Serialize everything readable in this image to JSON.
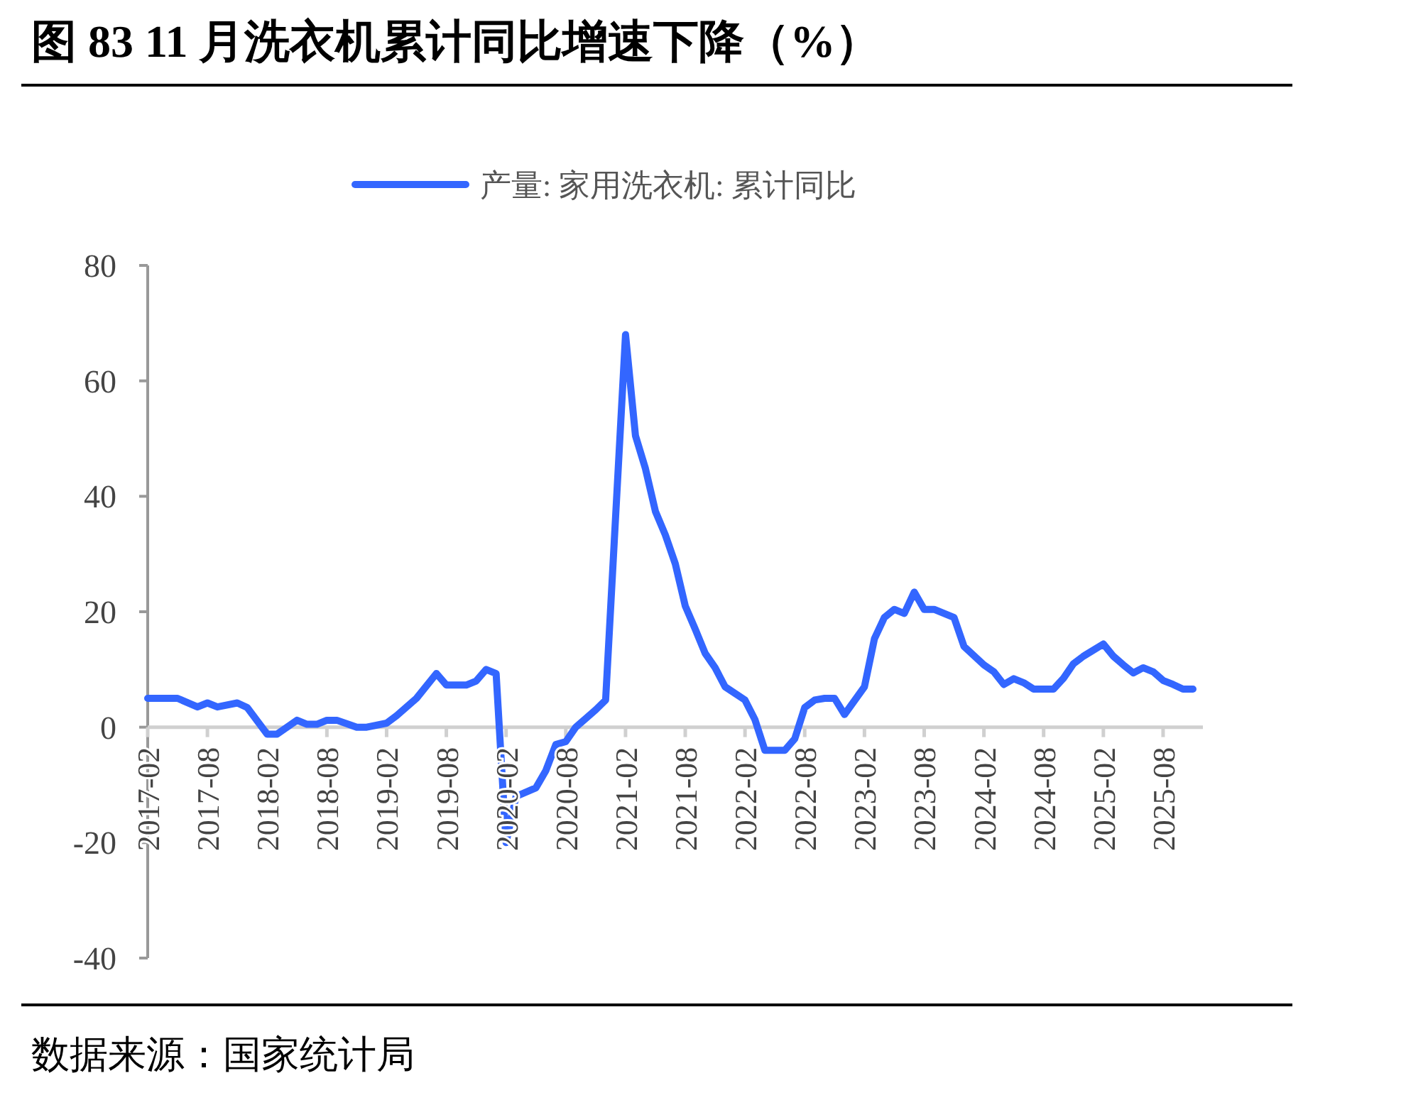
{
  "chart_data": {
    "type": "line",
    "title": "图 83 11 月洗衣机累计同比增速下降（%）",
    "annotations": [
      "数据来源：国家统计局"
    ],
    "x": [
      "2017-02",
      "2017-05",
      "2017-07",
      "2017-08",
      "2017-09",
      "2017-11",
      "2017-12",
      "2018-02",
      "2018-03",
      "2018-05",
      "2018-06",
      "2018-07",
      "2018-08",
      "2018-09",
      "2018-11",
      "2018-12",
      "2019-02",
      "2019-03",
      "2019-05",
      "2019-07",
      "2019-08",
      "2019-10",
      "2019-11",
      "2019-12",
      "2020-01",
      "2020-02",
      "2020-03",
      "2020-05",
      "2020-06",
      "2020-07",
      "2020-08",
      "2020-09",
      "2020-10",
      "2020-11",
      "2020-12",
      "2021-02",
      "2021-03",
      "2021-04",
      "2021-05",
      "2021-06",
      "2021-07",
      "2021-08",
      "2021-09",
      "2021-10",
      "2021-11",
      "2021-12",
      "2022-02",
      "2022-03",
      "2022-04",
      "2022-05",
      "2022-06",
      "2022-07",
      "2022-08",
      "2022-09",
      "2022-10",
      "2022-11",
      "2022-12",
      "2023-02",
      "2023-03",
      "2023-04",
      "2023-05",
      "2023-06",
      "2023-07",
      "2023-08",
      "2023-09",
      "2023-11",
      "2023-12",
      "2024-02",
      "2024-03",
      "2024-04",
      "2024-05",
      "2024-06",
      "2024-07",
      "2024-09",
      "2024-10",
      "2024-11",
      "2024-12",
      "2025-02",
      "2025-03",
      "2025-04",
      "2025-05",
      "2025-06",
      "2025-07",
      "2025-08",
      "2025-09",
      "2025-10",
      "2025-11"
    ],
    "series": [
      {
        "name": "产量: 家用洗衣机: 累计同比",
        "color": "#3366ff",
        "values": [
          5,
          5,
          3.5,
          4.2,
          3.5,
          4.2,
          3.4,
          -1.2,
          -1.2,
          1.2,
          0.5,
          0.5,
          1.2,
          1.2,
          0,
          0,
          0.7,
          2,
          5,
          9.3,
          7.3,
          7.3,
          8,
          10,
          9.3,
          -20,
          -12,
          -10.5,
          -7.5,
          -3,
          -2.5,
          0,
          1.5,
          3,
          4.7,
          68,
          50.5,
          44.8,
          37.4,
          33.3,
          28.3,
          21,
          17,
          12.8,
          10.3,
          7,
          4.7,
          1.3,
          -4,
          -4,
          -4,
          -2,
          3.4,
          4.7,
          5,
          5,
          2.2,
          7,
          15.3,
          19,
          20.4,
          19.7,
          23.4,
          20.4,
          20.4,
          19,
          14,
          10.8,
          9.6,
          7.4,
          8.4,
          7.7,
          6.6,
          6.6,
          8.5,
          11,
          12.3,
          14.4,
          12.3,
          10.8,
          9.4,
          10.3,
          9.6,
          8.1,
          7.4,
          6.6,
          6.6
        ]
      }
    ],
    "xlim": [
      "2017-02",
      "2025-12"
    ],
    "xticks": [
      "2017-02",
      "2017-08",
      "2018-02",
      "2018-08",
      "2019-02",
      "2019-08",
      "2020-02",
      "2020-08",
      "2021-02",
      "2021-08",
      "2022-02",
      "2022-08",
      "2023-02",
      "2023-08",
      "2024-02",
      "2024-08",
      "2025-02",
      "2025-08"
    ],
    "ylim": [
      -40,
      80
    ],
    "yticks": [
      -40,
      -20,
      0,
      20,
      40,
      60,
      80
    ],
    "grid": false,
    "legend": "top",
    "marker": "none",
    "line_style": "solid"
  }
}
